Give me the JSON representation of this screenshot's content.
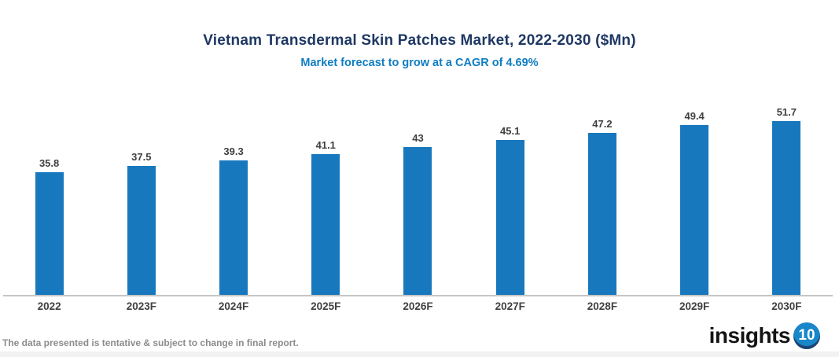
{
  "header": {
    "title": "Vietnam Transdermal Skin Patches Market, 2022-2030 ($Mn)",
    "subtitle": "Market forecast to grow at a CAGR of 4.69%"
  },
  "chart_data": {
    "type": "bar",
    "categories": [
      "2022",
      "2023F",
      "2024F",
      "2025F",
      "2026F",
      "2027F",
      "2028F",
      "2029F",
      "2030F"
    ],
    "values": [
      35.8,
      37.5,
      39.3,
      41.1,
      43,
      45.1,
      47.2,
      49.4,
      51.7
    ],
    "title": "Vietnam Transdermal Skin Patches Market, 2022-2030 ($Mn)",
    "subtitle": "Market forecast to grow at a CAGR of 4.69%",
    "xlabel": "",
    "ylabel": "",
    "ylim": [
      0,
      55
    ],
    "grid": false,
    "legend": false,
    "value_labels": true,
    "bar_color": "#1878BE"
  },
  "footer": {
    "disclaimer": "The data presented is tentative & subject to change in final report.",
    "logo_text": "insights",
    "logo_badge": "10"
  },
  "colors": {
    "title": "#1F3864",
    "subtitle": "#0E7DC1",
    "bar": "#1878BE",
    "axis": "#C6C6C6",
    "label": "#3F3F3F",
    "disclaimer": "#8C8C8C",
    "logo_badge_bg": "#1886C9"
  }
}
